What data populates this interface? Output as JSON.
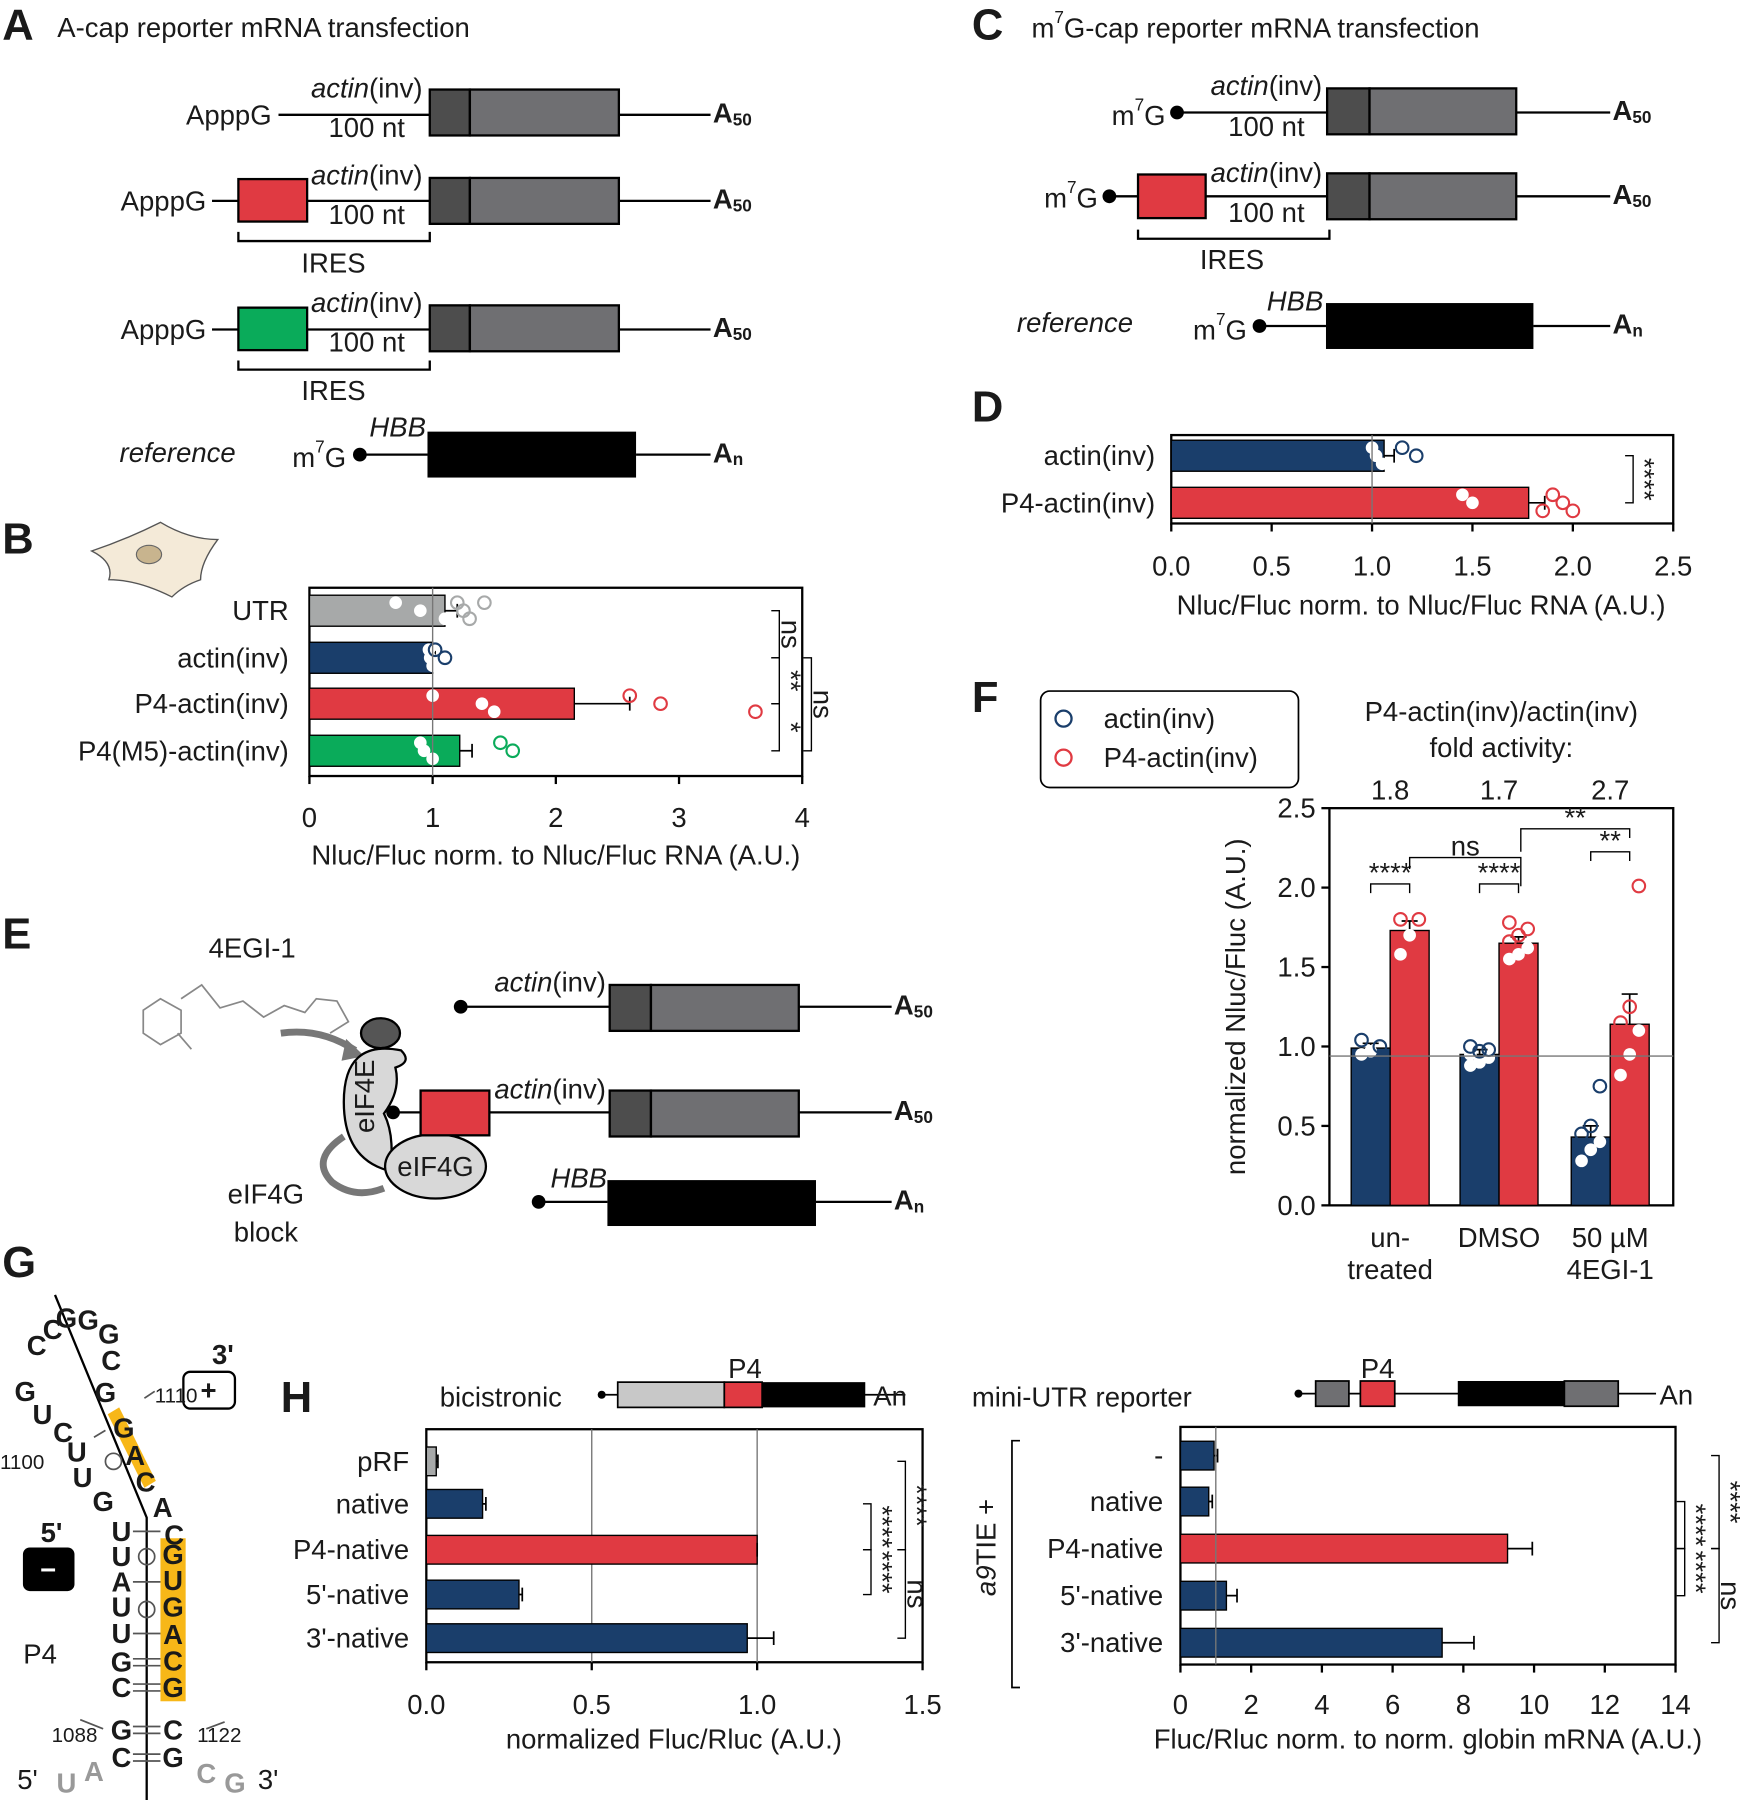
{
  "figure": {
    "panel_labels": [
      "A",
      "B",
      "C",
      "D",
      "E",
      "F",
      "G",
      "H"
    ],
    "A": {
      "title": "A-cap reporter mRNA transfection",
      "cap": "ApppG",
      "utr": [
        "actin",
        "(inv)"
      ],
      "length": "100 nt",
      "ires": "IRES",
      "polyA": [
        "A",
        "50"
      ],
      "reference": "reference",
      "ref_cap": [
        "m",
        "7",
        "G"
      ],
      "ref_gene": "HBB",
      "ref_polyA": [
        "A",
        "n"
      ]
    },
    "C": {
      "title": [
        "m",
        "7",
        "G-cap reporter mRNA transfection"
      ],
      "cap": [
        "m",
        "7",
        "G"
      ],
      "utr": [
        "actin",
        "(inv)"
      ],
      "length": "100 nt",
      "ires": "IRES",
      "polyA": [
        "A",
        "50"
      ],
      "reference": "reference",
      "ref_gene": "HBB",
      "ref_polyA": [
        "A",
        "n"
      ]
    },
    "E": {
      "drug": "4EGI-1",
      "eif4e": "eIF4E",
      "eif4g": "eIF4G",
      "block": [
        "eIF4G",
        "block"
      ],
      "utr": [
        "actin",
        "(inv)"
      ],
      "polyA": [
        "A",
        "50"
      ],
      "ref_gene": "HBB",
      "ref_polyA": [
        "A",
        "n"
      ]
    },
    "G": {
      "label": "P4",
      "plus": "+",
      "minus": "−",
      "top_3prime": "3'",
      "top_5prime": "5'",
      "bottom_5prime": "5'",
      "bottom_3prime": "3'",
      "positions": [
        "1110",
        "1100",
        "1088",
        "1122"
      ],
      "nucleotides": [
        "C",
        "C",
        "G",
        "G",
        "G",
        "C",
        "G",
        "G",
        "U",
        "C",
        "U",
        "U",
        "G",
        "G",
        "A",
        "C",
        "A",
        "C",
        "U",
        "U",
        "A",
        "U",
        "U",
        "G",
        "C",
        "G",
        "C",
        "G",
        "U",
        "G",
        "A",
        "C",
        "G",
        "C",
        "G",
        "U",
        "A",
        "C",
        "G"
      ]
    }
  },
  "chart_data": [
    {
      "type": "hbar",
      "categories": [
        "UTR",
        "actin(inv)",
        "P4-actin(inv)",
        "P4(M5)-actin(inv)"
      ],
      "values": [
        1.1,
        1.0,
        2.15,
        1.22
      ],
      "errors": [
        0.1,
        0.02,
        0.45,
        0.1
      ],
      "colors": [
        "#a7a9a9",
        "#1a3e6b",
        "#e03a42",
        "#0aab5a"
      ],
      "points": [
        [
          0.7,
          0.9,
          1.1,
          1.2,
          1.25,
          1.3,
          1.42
        ],
        [
          0.97,
          0.98,
          1.0,
          1.02,
          1.1
        ],
        [
          1.0,
          1.4,
          1.5,
          2.6,
          2.85,
          3.62
        ],
        [
          0.9,
          0.93,
          1.0,
          1.55,
          1.65
        ]
      ],
      "xlim": [
        0,
        4
      ],
      "xticks": [
        0,
        1,
        2,
        3,
        4
      ],
      "xlabel": "Nluc/Fluc norm. to Nluc/Fluc RNA (A.U.)",
      "reference_line": 1,
      "annotations": [
        "ns",
        "**",
        "*",
        "ns"
      ]
    },
    {
      "type": "hbar",
      "categories": [
        "actin(inv)",
        "P4-actin(inv)"
      ],
      "values": [
        1.06,
        1.78
      ],
      "errors": [
        0.05,
        0.08
      ],
      "colors": [
        "#1a3e6b",
        "#e03a42"
      ],
      "points": [
        [
          1.0,
          1.02,
          1.05,
          1.15,
          1.22
        ],
        [
          1.45,
          1.5,
          1.85,
          1.9,
          1.95,
          2.0
        ]
      ],
      "xlim": [
        0,
        2.5
      ],
      "xticks": [
        {
          "value": 0,
          "label": "0.0"
        },
        0.5,
        {
          "value": 1,
          "label": "1.0"
        },
        1.5,
        {
          "value": 2,
          "label": "2.0"
        },
        2.5
      ],
      "xlabel": "Nluc/Fluc norm. to Nluc/Fluc RNA (A.U.)",
      "reference_line": 1,
      "annotations": [
        "****"
      ]
    },
    {
      "type": "vbar",
      "categories": [
        [
          "un-",
          "treated"
        ],
        [
          "DMSO"
        ],
        [
          "50 µM",
          "4EGI-1"
        ]
      ],
      "series": [
        {
          "name": "actin(inv)",
          "color": "#1a3e6b",
          "values": [
            0.99,
            0.95,
            0.43
          ],
          "errors": [
            0.03,
            0.03,
            0.07
          ],
          "points": [
            [
              0.95,
              0.97,
              1.0,
              1.04
            ],
            [
              0.88,
              0.9,
              0.93,
              0.95,
              0.97,
              0.98,
              1.0
            ],
            [
              0.28,
              0.35,
              0.4,
              0.45,
              0.5,
              0.75
            ]
          ]
        },
        {
          "name": "P4-actin(inv)",
          "color": "#e03a42",
          "values": [
            1.73,
            1.65,
            1.14
          ],
          "errors": [
            0.06,
            0.04,
            0.19
          ],
          "points": [
            [
              1.58,
              1.7,
              1.8,
              1.8
            ],
            [
              1.55,
              1.58,
              1.62,
              1.66,
              1.7,
              1.74,
              1.78
            ],
            [
              0.82,
              0.95,
              1.1,
              1.15,
              1.25,
              2.01
            ]
          ]
        }
      ],
      "ylim": [
        0,
        2.5
      ],
      "yticks": [
        {
          "value": 0,
          "label": "0.0"
        },
        0.5,
        {
          "value": 1,
          "label": "1.0"
        },
        1.5,
        {
          "value": 2,
          "label": "2.0"
        },
        2.5
      ],
      "ylabel": "normalized Nluc/Fluc (A.U.)",
      "reference_line": 0.94,
      "legend": "upper left",
      "header": [
        "P4-actin(inv)/actin(inv)",
        "fold activity:"
      ],
      "fold_activity": [
        1.8,
        1.7,
        2.7
      ],
      "annotations": [
        "****",
        "ns",
        "****",
        "**",
        "**"
      ]
    },
    {
      "type": "hbar",
      "title": "bicistronic",
      "inset_labels": [
        "P4",
        "An"
      ],
      "categories": [
        "pRF",
        "native",
        "P4-native",
        "5'-native",
        "3'-native"
      ],
      "values": [
        0.03,
        0.17,
        1.0,
        0.28,
        0.97
      ],
      "errors": [
        0.005,
        0.01,
        0,
        0.01,
        0.08
      ],
      "colors": [
        "#a7a9a9",
        "#1a3e6b",
        "#e03a42",
        "#1a3e6b",
        "#1a3e6b"
      ],
      "xlim": [
        0,
        1.5
      ],
      "xticks": [
        {
          "value": 0,
          "label": "0.0"
        },
        0.5,
        {
          "value": 1,
          "label": "1.0"
        },
        1.5
      ],
      "grid": true,
      "xlabel": "normalized Fluc/Rluc (A.U.)",
      "annotations": [
        "****",
        "****",
        "****",
        "ns"
      ]
    },
    {
      "type": "hbar",
      "title": "mini-UTR reporter",
      "inset_labels": [
        "P4",
        "An"
      ],
      "group_label": [
        "a9",
        "TIE +"
      ],
      "categories": [
        "-",
        "native",
        "P4-native",
        "5'-native",
        "3'-native"
      ],
      "values": [
        0.95,
        0.8,
        9.25,
        1.3,
        7.4
      ],
      "errors": [
        0.1,
        0.1,
        0.7,
        0.3,
        0.9
      ],
      "colors": [
        "#1a3e6b",
        "#1a3e6b",
        "#e03a42",
        "#1a3e6b",
        "#1a3e6b"
      ],
      "xlim": [
        0,
        14
      ],
      "xticks": [
        0,
        2,
        4,
        6,
        8,
        10,
        12,
        14
      ],
      "xlabel": "Fluc/Rluc norm. to norm. globin mRNA (A.U.)",
      "reference_line": 1,
      "annotations": [
        "****",
        "****",
        "****",
        "ns"
      ]
    }
  ]
}
